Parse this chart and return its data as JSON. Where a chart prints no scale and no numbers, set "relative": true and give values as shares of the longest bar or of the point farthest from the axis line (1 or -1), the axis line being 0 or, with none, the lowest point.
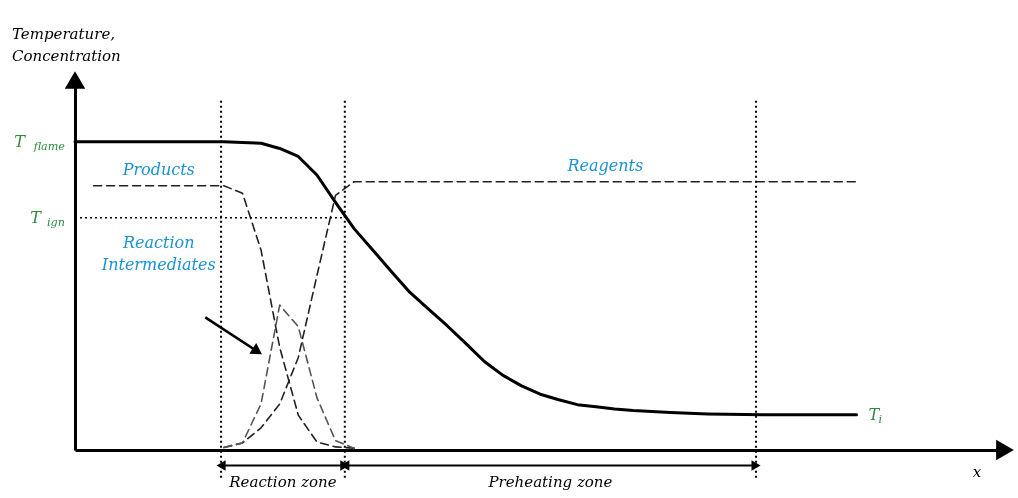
{
  "chart_data": {
    "type": "line",
    "relative": true,
    "tick_labels": false,
    "legend": false,
    "categories": [
      null,
      null,
      null,
      null,
      null,
      null,
      null,
      null,
      null,
      null,
      null,
      null,
      null,
      null,
      null,
      null,
      null,
      null,
      null,
      null,
      null,
      null,
      null,
      null,
      null,
      null,
      null,
      null,
      null,
      null,
      null,
      null,
      null,
      null,
      null,
      null,
      null,
      null,
      null,
      null,
      null,
      null,
      null
    ],
    "series": [
      {
        "color": "#000000",
        "line_style": "solid",
        "values": [
          1,
          1,
          1,
          1,
          1,
          1,
          1,
          1,
          1,
          0.997,
          0.995,
          0.978,
          0.952,
          0.892,
          0.803,
          0.718,
          0.649,
          0.579,
          0.511,
          0.457,
          0.403,
          0.346,
          0.287,
          0.242,
          0.208,
          0.181,
          0.163,
          0.147,
          0.14,
          0.133,
          0.128,
          0.125,
          0.122,
          0.119,
          0.117,
          0.116,
          0.115,
          0.114,
          0.114,
          0.114,
          0.114,
          0.114,
          0.114
        ]
      },
      {
        "name": "Products",
        "color": "#222222",
        "line_style": "dashed",
        "values": [
          null,
          0.857,
          0.857,
          0.857,
          0.857,
          0.857,
          0.857,
          0.857,
          0.857,
          0.833,
          0.648,
          0.333,
          0.113,
          0.026,
          0.01,
          0.006,
          null,
          null,
          null,
          null,
          null,
          null,
          null,
          null,
          null,
          null,
          null,
          null,
          null,
          null,
          null,
          null,
          null,
          null,
          null,
          null,
          null,
          null,
          null,
          null,
          null,
          null,
          null
        ]
      },
      {
        "name": "Reagents",
        "color": "#222222",
        "line_style": "dashed",
        "values": [
          null,
          null,
          null,
          null,
          null,
          null,
          null,
          null,
          0.008,
          0.023,
          0.072,
          0.149,
          0.3,
          0.565,
          0.826,
          0.87,
          0.87,
          0.87,
          0.87,
          0.87,
          0.87,
          0.87,
          0.87,
          0.87,
          0.87,
          0.87,
          0.87,
          0.87,
          0.87,
          0.87,
          0.87,
          0.87,
          0.87,
          0.87,
          0.87,
          0.87,
          0.87,
          0.87,
          0.87,
          0.87,
          0.87,
          0.87,
          0.87
        ]
      },
      {
        "color": "#555555",
        "line_style": "dashed",
        "values": [
          null,
          null,
          null,
          null,
          null,
          null,
          null,
          null,
          0.008,
          0.023,
          0.15,
          0.47,
          0.4,
          0.17,
          0.03,
          0.006,
          null,
          null,
          null,
          null,
          null,
          null,
          null,
          null,
          null,
          null,
          null,
          null,
          null,
          null,
          null,
          null,
          null,
          null,
          null,
          null,
          null,
          null,
          null,
          null,
          null,
          null,
          null
        ]
      }
    ],
    "ref_lines": [
      {
        "axis": "y",
        "value": 0.753,
        "label": "T$_{ign}$",
        "line_style": "dotted",
        "color": "#000000"
      }
    ],
    "annotations": [
      "T$_{flame}$",
      "T$_{i}$",
      "Reaction Intermediates",
      "Reaction zone",
      "Preheating zone",
      "Temperature,\nConcentration",
      "x"
    ]
  }
}
